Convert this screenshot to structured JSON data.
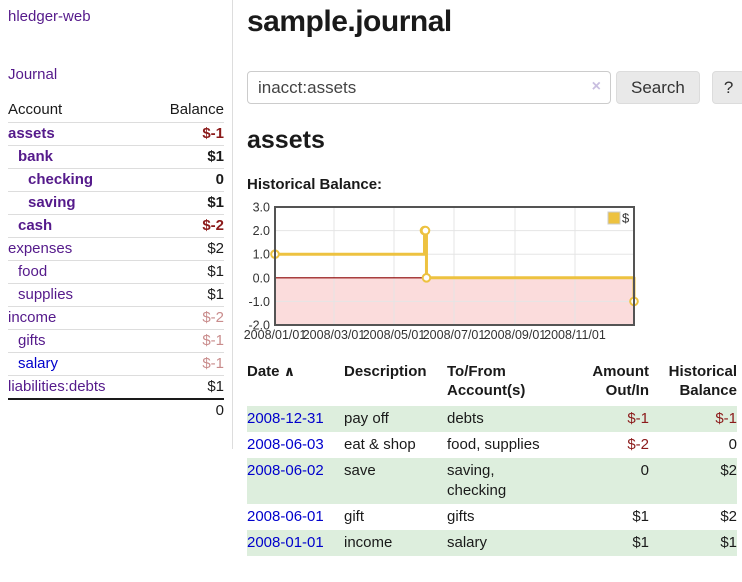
{
  "sidebar": {
    "app_title": "hledger-web",
    "journal_link": "Journal",
    "accounts_table": {
      "headers": {
        "account": "Account",
        "balance": "Balance"
      },
      "accounts": [
        {
          "name": "assets",
          "level": 1,
          "bold": true,
          "link_style": "purple",
          "balance": "$-1",
          "balance_style": "neg"
        },
        {
          "name": "bank",
          "level": 2,
          "bold": true,
          "link_style": "purple",
          "balance": "$1",
          "balance_style": "pos"
        },
        {
          "name": "checking",
          "level": 3,
          "bold": true,
          "link_style": "purple",
          "balance": "0",
          "balance_style": "pos"
        },
        {
          "name": "saving",
          "level": 3,
          "bold": true,
          "link_style": "purple",
          "balance": "$1",
          "balance_style": "pos"
        },
        {
          "name": "cash",
          "level": 2,
          "bold": true,
          "link_style": "purple",
          "balance": "$-2",
          "balance_style": "neg"
        },
        {
          "name": "expenses",
          "level": 1,
          "bold": false,
          "link_style": "purple",
          "balance": "$2",
          "balance_style": "pos"
        },
        {
          "name": "food",
          "level": 2,
          "bold": false,
          "link_style": "purple",
          "balance": "$1",
          "balance_style": "pos"
        },
        {
          "name": "supplies",
          "level": 2,
          "bold": false,
          "link_style": "purple",
          "balance": "$1",
          "balance_style": "pos"
        },
        {
          "name": "income",
          "level": 1,
          "bold": false,
          "link_style": "purple",
          "balance": "$-2",
          "balance_style": "neg-light"
        },
        {
          "name": "gifts",
          "level": 2,
          "bold": false,
          "link_style": "purple",
          "balance": "$-1",
          "balance_style": "neg-light"
        },
        {
          "name": "salary",
          "level": 2,
          "bold": false,
          "link_style": "blue",
          "balance": "$-1",
          "balance_style": "neg-light"
        },
        {
          "name": "liabilities:debts",
          "level": 1,
          "bold": false,
          "link_style": "purple",
          "balance": "$1",
          "balance_style": "pos"
        }
      ],
      "total": "0"
    }
  },
  "main": {
    "title": "sample.journal",
    "search": {
      "value": "inacct:assets",
      "clear": "×",
      "button": "Search",
      "help": "?"
    },
    "account_heading": "assets",
    "chart_label": "Historical Balance:",
    "register": {
      "headers": {
        "date": "Date",
        "sort_arrow": "∧",
        "description": "Description",
        "accounts": "To/From Account(s)",
        "amount": "Amount Out/In",
        "balance": "Historical Balance"
      },
      "rows": [
        {
          "date": "2008-12-31",
          "description": "pay off",
          "accounts": "debts",
          "amount": "$-1",
          "amount_style": "neg",
          "balance": "$-1",
          "balance_style": "neg"
        },
        {
          "date": "2008-06-03",
          "description": "eat & shop",
          "accounts": "food, supplies",
          "amount": "$-2",
          "amount_style": "neg",
          "balance": "0",
          "balance_style": "pos"
        },
        {
          "date": "2008-06-02",
          "description": "save",
          "accounts": "saving,\nchecking",
          "amount": "0",
          "amount_style": "pos",
          "balance": "$2",
          "balance_style": "pos"
        },
        {
          "date": "2008-06-01",
          "description": "gift",
          "accounts": "gifts",
          "amount": "$1",
          "amount_style": "pos",
          "balance": "$2",
          "balance_style": "pos"
        },
        {
          "date": "2008-01-01",
          "description": "income",
          "accounts": "salary",
          "amount": "$1",
          "amount_style": "pos",
          "balance": "$1",
          "balance_style": "pos"
        }
      ]
    }
  },
  "chart_data": {
    "type": "line",
    "title": "Historical Balance",
    "step": true,
    "x_unit": "day_of_year_2008",
    "xlim": [
      1,
      366
    ],
    "ylim": [
      -2,
      3
    ],
    "yticks": [
      {
        "v": 3,
        "label": "3.0"
      },
      {
        "v": 2,
        "label": "2.0"
      },
      {
        "v": 1,
        "label": "1.0"
      },
      {
        "v": 0,
        "label": "0.0"
      },
      {
        "v": -1,
        "label": "-1.0"
      },
      {
        "v": -2,
        "label": "-2.0"
      }
    ],
    "xticks": [
      {
        "v": 1,
        "label": "2008/01/01"
      },
      {
        "v": 61,
        "label": "2008/03/01"
      },
      {
        "v": 122,
        "label": "2008/05/01"
      },
      {
        "v": 183,
        "label": "2008/07/01"
      },
      {
        "v": 245,
        "label": "2008/09/01"
      },
      {
        "v": 306,
        "label": "2008/11/01"
      }
    ],
    "series": [
      {
        "name": "$",
        "color": "#edc240",
        "dates": [
          "2008-01-01",
          "2008-06-01",
          "2008-06-02",
          "2008-06-03",
          "2008-12-31"
        ],
        "points": [
          {
            "x": 1,
            "y": 1
          },
          {
            "x": 153,
            "y": 2
          },
          {
            "x": 154,
            "y": 2
          },
          {
            "x": 155,
            "y": 0
          },
          {
            "x": 366,
            "y": -1
          }
        ]
      }
    ],
    "legend": {
      "label": "$",
      "position": "top-right"
    },
    "grid": true,
    "marker_fill": "#ffffff",
    "negative_region_fill": "#fbdcdc",
    "zero_line_color": "#8b0000",
    "grid_color": "#e5e5e5",
    "border_color": "#545454",
    "tick_text_color": "#333333"
  }
}
